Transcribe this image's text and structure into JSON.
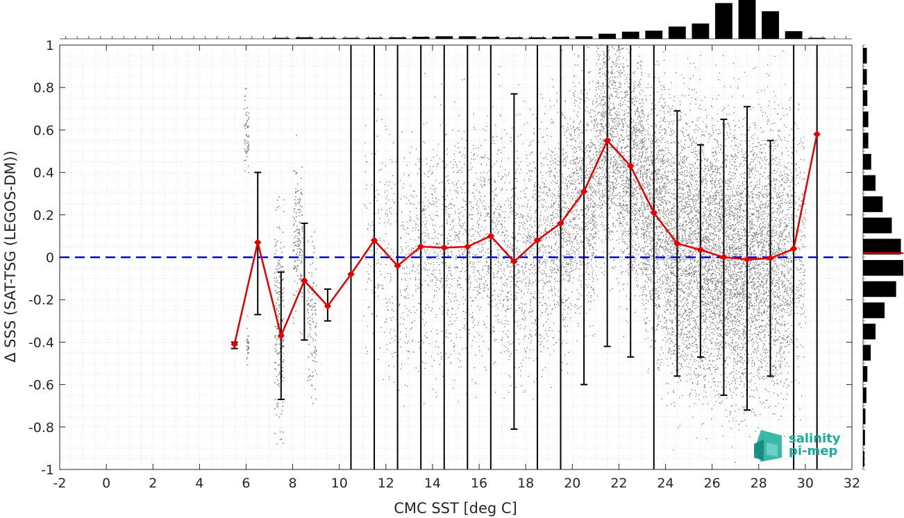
{
  "chart_data": {
    "type": "scatter",
    "title": "",
    "xlabel": "CMC SST [deg C]",
    "ylabel": "Δ SSS (SAT-TSG (LEGOS-DM))",
    "xlim": [
      -2,
      32
    ],
    "ylim": [
      -1,
      1
    ],
    "x_ticks": [
      -2,
      0,
      2,
      4,
      6,
      8,
      10,
      12,
      14,
      16,
      18,
      20,
      22,
      24,
      26,
      28,
      30,
      32
    ],
    "y_ticks": [
      -1,
      -0.8,
      -0.6,
      -0.4,
      -0.2,
      0,
      0.2,
      0.4,
      0.6,
      0.8,
      1
    ],
    "grid": true,
    "reference_line": {
      "y": 0,
      "style": "dashed",
      "color": "#0000e0"
    },
    "series": [
      {
        "type": "line",
        "color": "#e00000",
        "marker": "diamond",
        "x": [
          5.5,
          6.5,
          7.5,
          8.5,
          9.5,
          10.5,
          11.5,
          12.5,
          13.5,
          14.5,
          15.5,
          16.5,
          17.5,
          18.5,
          19.5,
          20.5,
          21.5,
          22.5,
          23.5,
          24.5,
          25.5,
          26.5,
          27.5,
          28.5,
          29.5,
          30.5
        ],
        "y": [
          -0.41,
          0.07,
          -0.37,
          -0.11,
          -0.23,
          -0.08,
          0.08,
          -0.04,
          0.05,
          0.045,
          0.05,
          0.1,
          -0.02,
          0.08,
          0.16,
          0.31,
          0.55,
          0.43,
          0.21,
          0.065,
          0.035,
          0.0,
          -0.01,
          -0.005,
          0.04,
          0.58
        ],
        "error_low": [
          -0.43,
          -0.27,
          -0.67,
          -0.39,
          -0.3,
          -1.0,
          -1.0,
          -1.0,
          -1.0,
          -1.0,
          -1.0,
          -1.0,
          -0.81,
          -1.0,
          -1.0,
          -0.6,
          -0.42,
          -0.47,
          -1.0,
          -0.56,
          -0.47,
          -0.65,
          -0.72,
          -0.56,
          -1.0,
          -1.0
        ],
        "error_high": [
          -0.4,
          0.4,
          -0.07,
          0.16,
          -0.15,
          1.0,
          1.0,
          1.0,
          1.0,
          1.0,
          1.0,
          1.0,
          0.77,
          1.0,
          1.0,
          1.0,
          1.0,
          1.0,
          1.0,
          0.69,
          0.53,
          0.65,
          0.71,
          0.55,
          1.0,
          1.0
        ]
      }
    ],
    "scatter_color": "#808080",
    "histogram_top": {
      "bins": [
        7.5,
        8.5,
        9.5,
        10.5,
        11.5,
        12.5,
        13.5,
        14.5,
        15.5,
        16.5,
        17.5,
        18.5,
        19.5,
        20.5,
        21.5,
        22.5,
        23.5,
        24.5,
        25.5,
        26.5,
        27.5,
        28.5,
        29.5,
        30.5
      ],
      "values": [
        0.01,
        0.015,
        0.01,
        0.01,
        0.012,
        0.015,
        0.02,
        0.025,
        0.025,
        0.02,
        0.015,
        0.015,
        0.02,
        0.025,
        0.05,
        0.07,
        0.08,
        0.12,
        0.15,
        0.35,
        0.38,
        0.27,
        0.075,
        0.01
      ]
    },
    "histogram_right": {
      "bins": [
        0.95,
        0.85,
        0.75,
        0.65,
        0.55,
        0.45,
        0.35,
        0.25,
        0.15,
        0.05,
        -0.05,
        -0.15,
        -0.25,
        -0.35,
        -0.45,
        -0.55,
        -0.65,
        -0.75,
        -0.85,
        -0.95
      ],
      "values": [
        0.08,
        0.08,
        0.09,
        0.11,
        0.11,
        0.17,
        0.26,
        0.41,
        0.6,
        0.79,
        0.84,
        0.69,
        0.45,
        0.26,
        0.16,
        0.09,
        0.07,
        0.05,
        0.04,
        0.03
      ],
      "median_line": {
        "y": 0.0,
        "color": "#e00000"
      }
    }
  },
  "logo": {
    "line1": "salinity",
    "line2": "pi-mep",
    "color": "#1aab9b"
  }
}
